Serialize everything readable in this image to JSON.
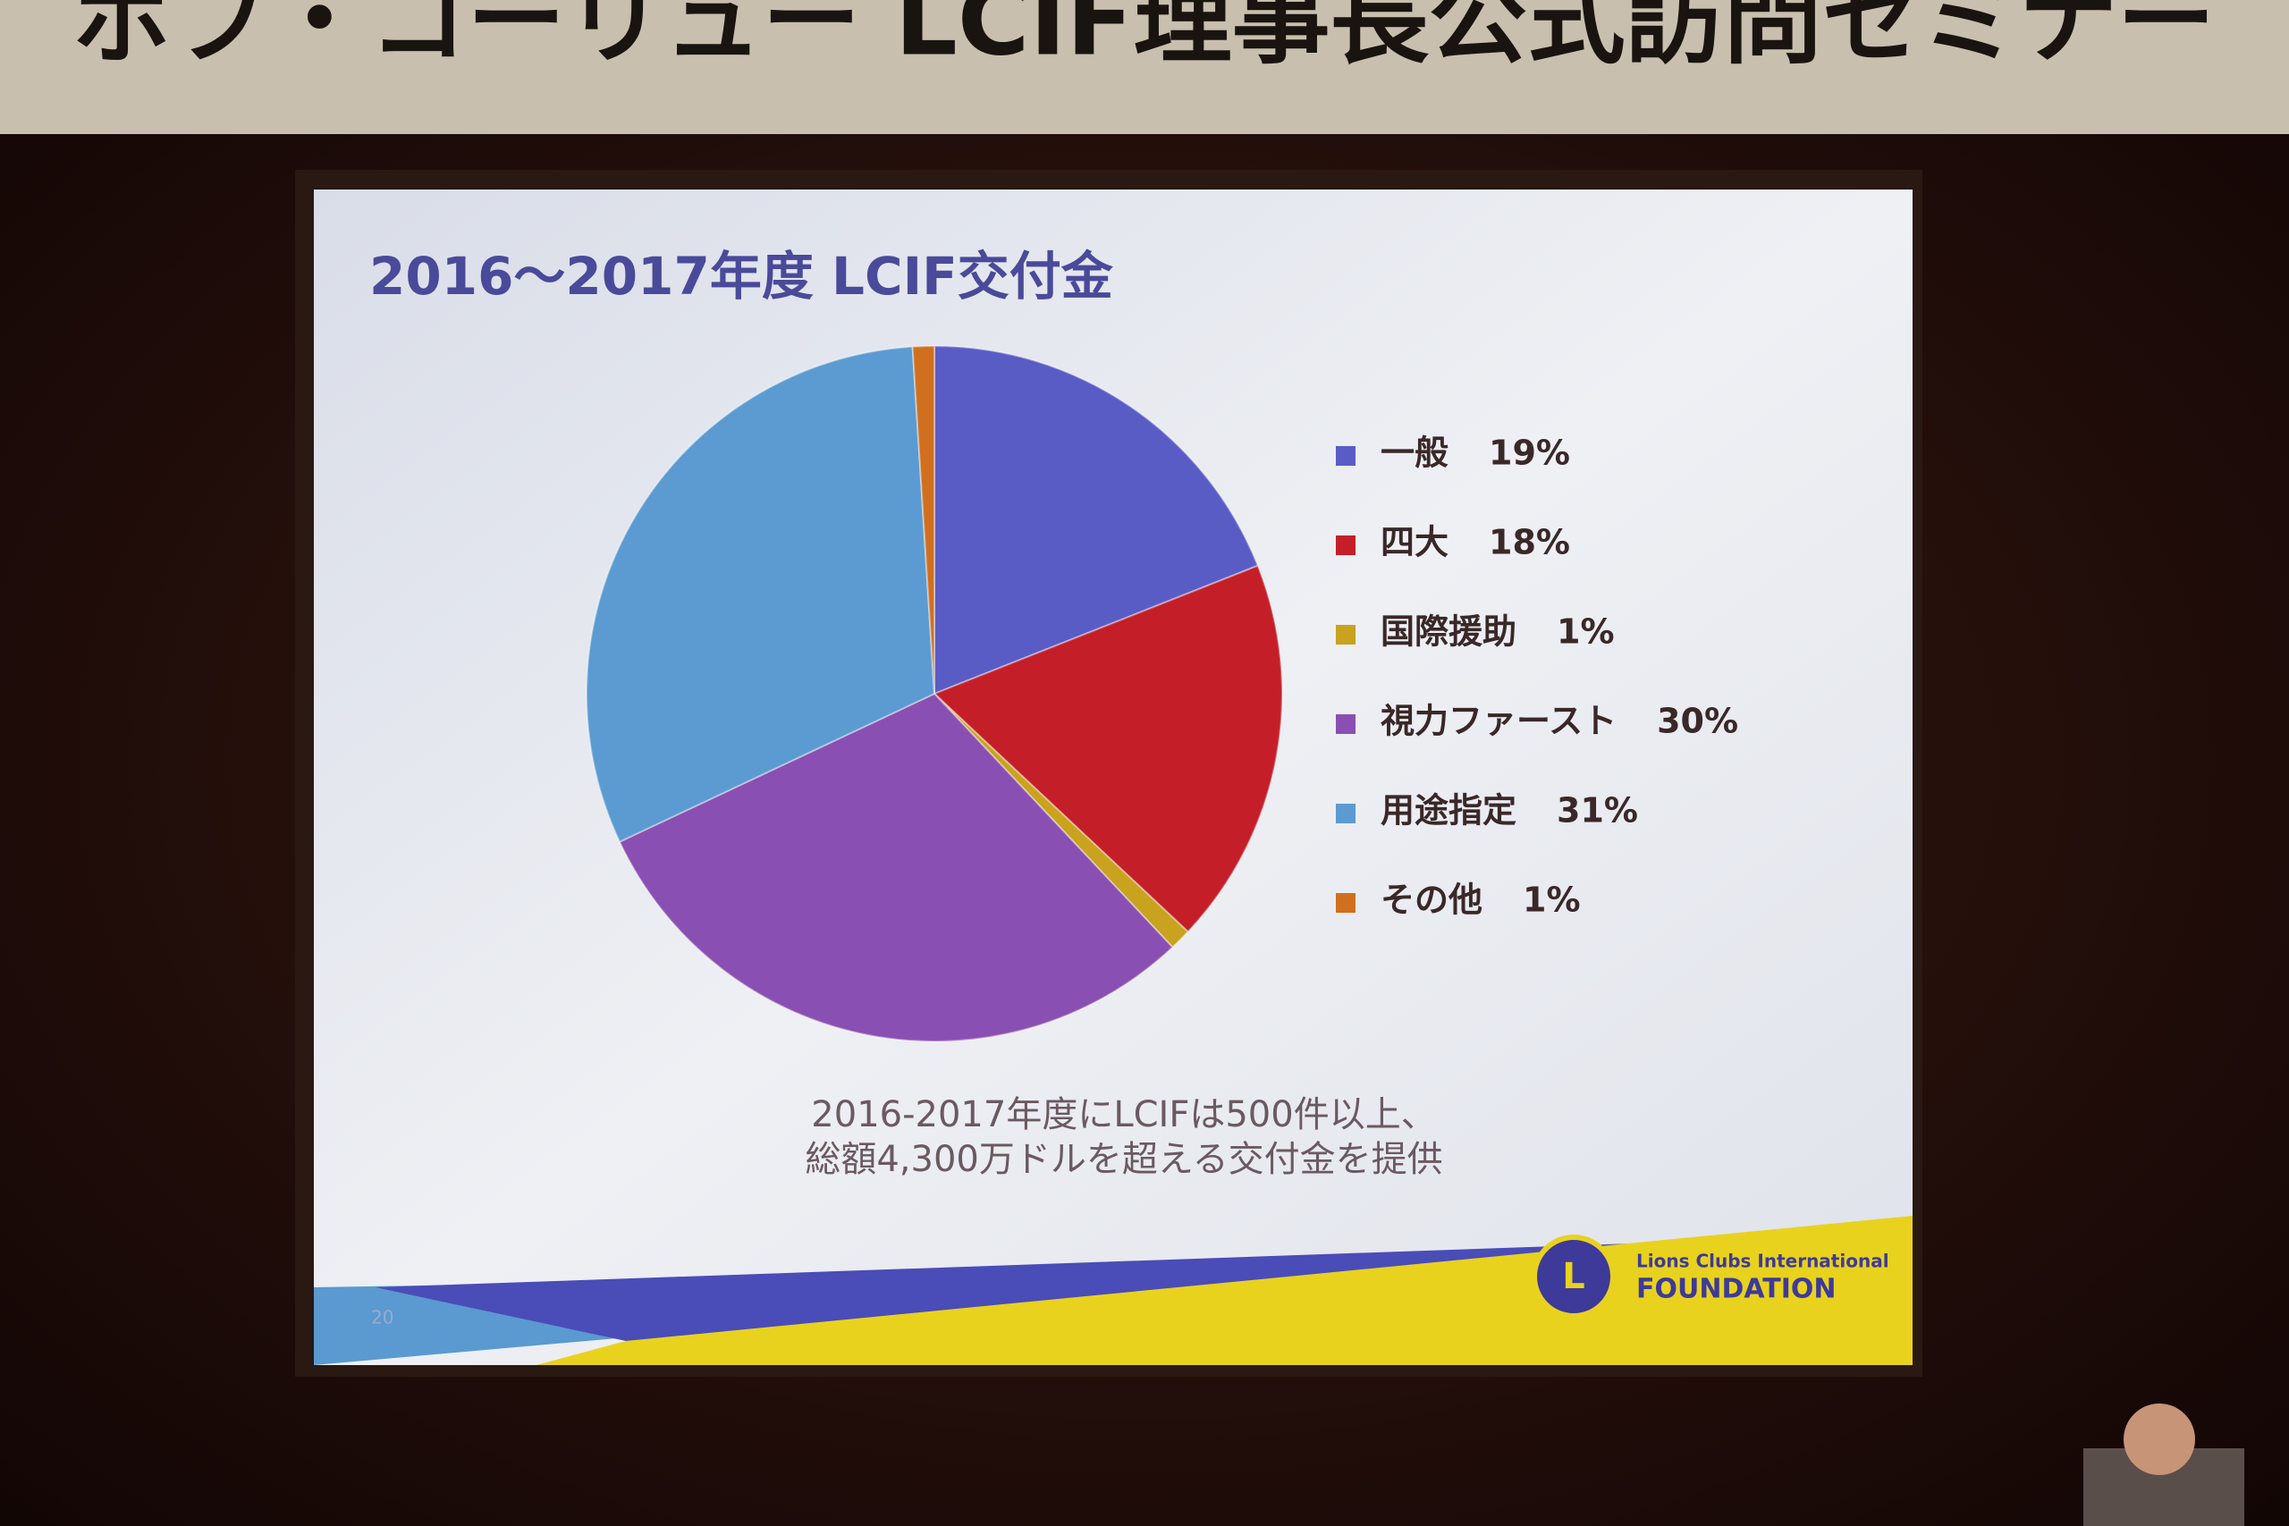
{
  "banner": {
    "title": "ボブ・コーリュー LCIF理事長公式訪問セミナー"
  },
  "chart_data": {
    "type": "pie",
    "title": "2016～2017年度 LCIF交付金",
    "categories": [
      "一般",
      "四大",
      "国際援助",
      "視力ファースト",
      "用途指定",
      "その他"
    ],
    "values": [
      19,
      18,
      1,
      30,
      31,
      1
    ],
    "value_labels": [
      "19%",
      "18%",
      "1%",
      "30%",
      "31%",
      "1%"
    ],
    "colors": [
      "#5a5cc6",
      "#c41f28",
      "#c9a21e",
      "#8a4fb2",
      "#5b9bd1",
      "#d0701e"
    ],
    "legend": "right",
    "notes": [
      "2016-2017年度にLCIFは500件以上、",
      "総額4,300万ドルを超える交付金を提供"
    ]
  },
  "footer": {
    "slide_number": "20",
    "logo_top": "Lions Clubs International",
    "logo_bottom": "FOUNDATION",
    "emblem": "L"
  }
}
